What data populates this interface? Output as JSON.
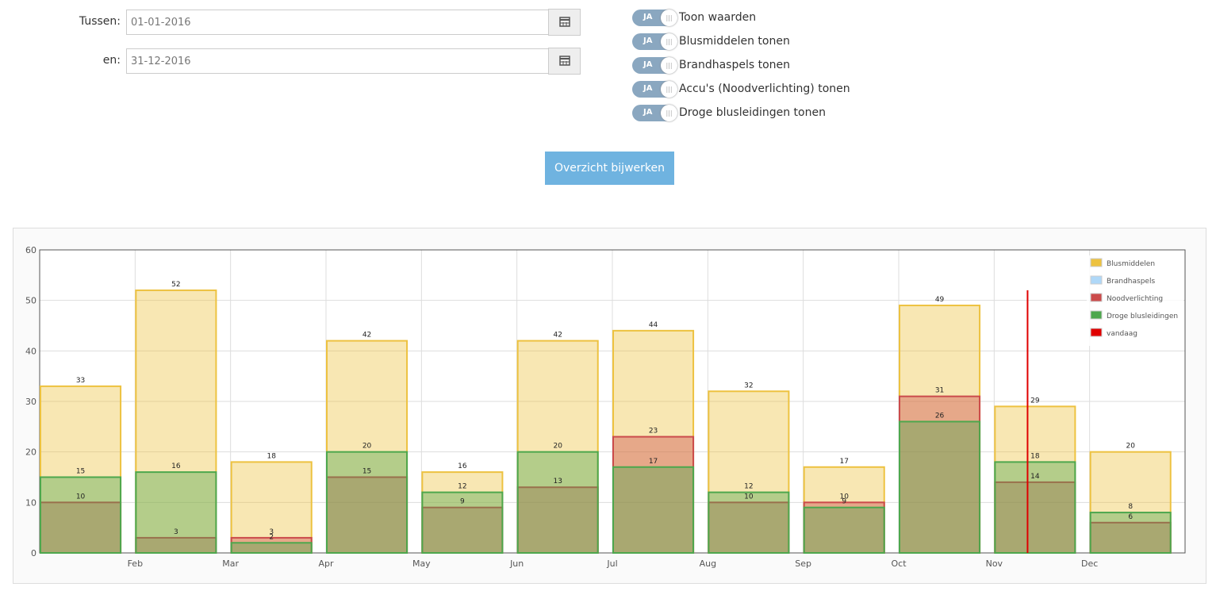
{
  "form": {
    "from_label": "Tussen:",
    "from_value": "01-01-2016",
    "to_label": "en:",
    "to_value": "31-12-2016",
    "toggles": [
      {
        "state": "JA",
        "label": "Toon waarden"
      },
      {
        "state": "JA",
        "label": "Blusmiddelen tonen"
      },
      {
        "state": "JA",
        "label": "Brandhaspels tonen"
      },
      {
        "state": "JA",
        "label": "Accu's (Noodverlichting) tonen"
      },
      {
        "state": "JA",
        "label": "Droge blusleidingen tonen"
      }
    ],
    "submit": "Overzicht bijwerken"
  },
  "chart_data": {
    "type": "bar",
    "stacked": false,
    "categories": [
      null,
      "Feb",
      "Mar",
      "Apr",
      "May",
      "Jun",
      "Jul",
      "Aug",
      "Sep",
      "Oct",
      "Nov",
      "Dec"
    ],
    "series": [
      {
        "name": "Blusmiddelen",
        "color": "#edc240",
        "values": [
          33,
          52,
          18,
          42,
          16,
          42,
          44,
          32,
          17,
          49,
          29,
          20
        ]
      },
      {
        "name": "Brandhaspels",
        "color": "#afd8f8",
        "values": [
          null,
          null,
          null,
          null,
          null,
          null,
          null,
          null,
          null,
          null,
          null,
          null
        ]
      },
      {
        "name": "Noodverlichting",
        "color": "#cb4b4b",
        "values": [
          10,
          3,
          3,
          15,
          9,
          13,
          23,
          10,
          10,
          31,
          14,
          6
        ]
      },
      {
        "name": "Droge blusleidingen",
        "color": "#4da74d",
        "values": [
          15,
          16,
          2,
          20,
          12,
          20,
          17,
          12,
          9,
          26,
          18,
          8
        ]
      }
    ],
    "today": {
      "name": "vandaag",
      "color": "#e00000",
      "x": 10.35,
      "top": 52
    },
    "ylim": [
      0,
      60
    ],
    "yticks": [
      0,
      10,
      20,
      30,
      40,
      50,
      60
    ],
    "grid": true,
    "legend": "top-right"
  }
}
